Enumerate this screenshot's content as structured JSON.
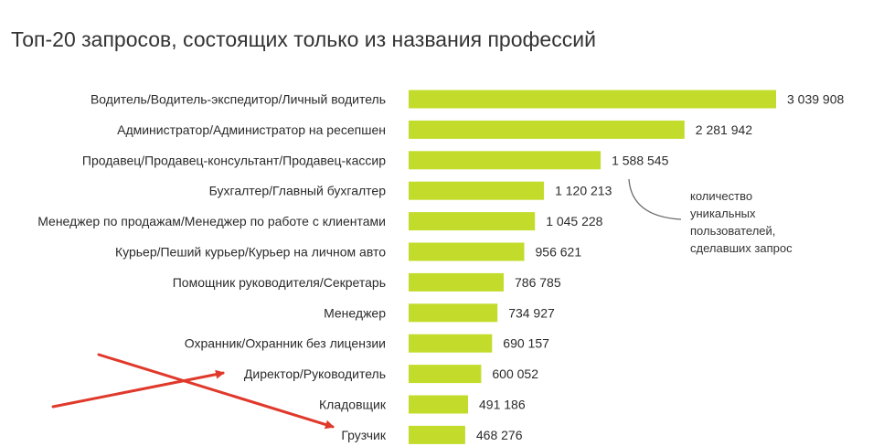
{
  "chart_data": {
    "type": "bar",
    "orientation": "horizontal",
    "title": "Топ-20 запросов, состоящих только из названия профессий",
    "categories": [
      "Водитель/Водитель-экспедитор/Личный водитель",
      "Администратор/Администратор на ресепшен",
      "Продавец/Продавец-консультант/Продавец-кассир",
      "Бухгалтер/Главный бухгалтер",
      "Менеджер по продажам/Менеджер по работе с клиентами",
      "Курьер/Пеший курьер/Курьер на личном авто",
      "Помощник руководителя/Секретарь",
      "Менеджер",
      "Охранник/Охранник без лицензии",
      "Директор/Руководитель",
      "Кладовщик",
      "Грузчик"
    ],
    "values": [
      3039908,
      2281942,
      1588545,
      1120213,
      1045228,
      956621,
      786785,
      734927,
      690157,
      600052,
      491186,
      468276
    ],
    "value_labels": [
      "3 039 908",
      "2 281 942",
      "1 588 545",
      "1 120 213",
      "1 045 228",
      "956 621",
      "786 785",
      "734 927",
      "690 157",
      "600 052",
      "491 186",
      "468 276"
    ],
    "xlim": [
      0,
      3039908
    ],
    "bar_color": "#c3dc2b",
    "grid": false,
    "annotation": {
      "lines": [
        "количество",
        "уникальных",
        "пользователей,",
        "сделавших запрос"
      ],
      "points_to_category": "Бухгалтер/Главный бухгалтер"
    },
    "highlight_arrows": {
      "color": "#e0392b",
      "targets": [
        "Директор/Руководитель",
        "Грузчик"
      ]
    }
  }
}
